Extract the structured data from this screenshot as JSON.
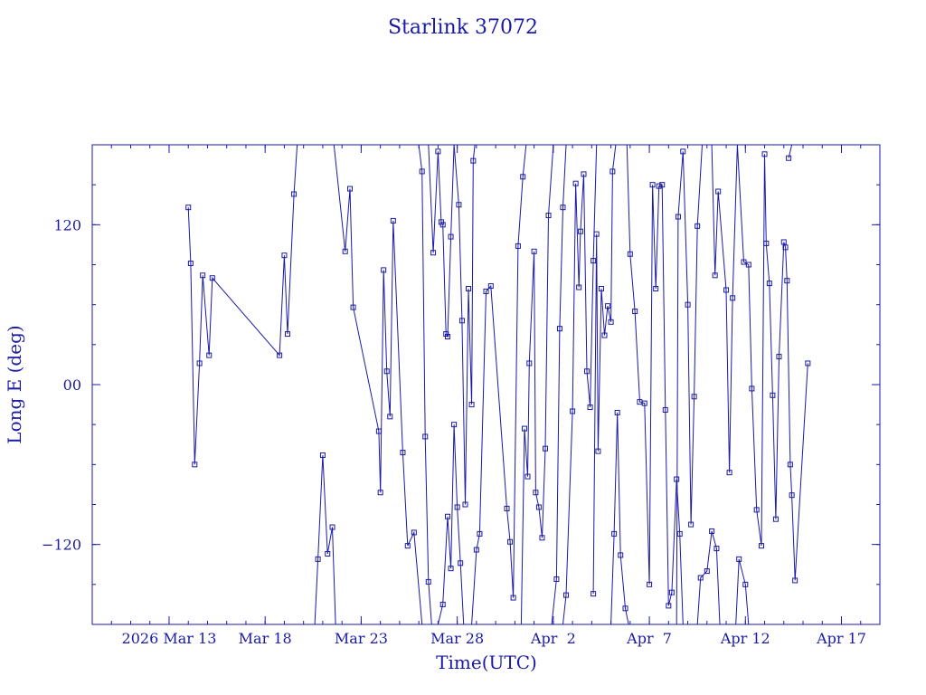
{
  "chart_data": {
    "type": "line",
    "title": "Starlink 37072",
    "xlabel": "Time(UTC)",
    "ylabel": "Long E (deg)",
    "x_unit": "date",
    "xlim": [
      "2026-03-09",
      "2026-04-19"
    ],
    "ylim": [
      -180,
      180
    ],
    "x_ticks": [
      {
        "label": "2026 Mar 13",
        "value": "2026-03-13"
      },
      {
        "label": "Mar 18",
        "value": "2026-03-18"
      },
      {
        "label": "Mar 23",
        "value": "2026-03-23"
      },
      {
        "label": "Mar 28",
        "value": "2026-03-28"
      },
      {
        "label": "Apr  2",
        "value": "2026-04-02"
      },
      {
        "label": "Apr  7",
        "value": "2026-04-07"
      },
      {
        "label": "Apr 12",
        "value": "2026-04-12"
      },
      {
        "label": "Apr 17",
        "value": "2026-04-17"
      }
    ],
    "y_ticks": [
      {
        "label": "120",
        "value": 120
      },
      {
        "label": "00",
        "value": 0
      },
      {
        "label": "−120",
        "value": -120
      }
    ],
    "grid": false,
    "wraps_longitude": true,
    "series": [
      {
        "values": [
          [
            "2026-03-14T00:00",
            133
          ],
          [
            "2026-03-14T03:00",
            91
          ],
          [
            "2026-03-14T08:00",
            -60
          ],
          [
            "2026-03-14T14:00",
            16
          ],
          [
            "2026-03-14T18:00",
            82
          ],
          [
            "2026-03-15T02:00",
            22
          ],
          [
            "2026-03-15T06:00",
            80
          ],
          [
            "2026-03-18T18:00",
            22
          ],
          [
            "2026-03-19T00:00",
            97
          ],
          [
            "2026-03-19T04:00",
            38
          ],
          [
            "2026-03-19T12:00",
            143
          ],
          [
            "2026-03-19T16:00",
            180
          ]
        ]
      },
      {
        "values": [
          [
            "2026-03-20T14:00",
            -180
          ],
          [
            "2026-03-20T18:00",
            -131
          ],
          [
            "2026-03-21T00:00",
            -53
          ],
          [
            "2026-03-21T06:00",
            -127
          ],
          [
            "2026-03-21T12:00",
            -107
          ],
          [
            "2026-03-21T16:00",
            -180
          ]
        ]
      },
      {
        "values": [
          [
            "2026-03-21T14:00",
            180
          ],
          [
            "2026-03-22T04:00",
            100
          ],
          [
            "2026-03-22T10:00",
            147
          ],
          [
            "2026-03-22T14:00",
            58
          ],
          [
            "2026-03-23T22:00",
            -35
          ],
          [
            "2026-03-24T00:00",
            -81
          ],
          [
            "2026-03-24T04:00",
            86
          ],
          [
            "2026-03-24T08:00",
            10
          ],
          [
            "2026-03-24T12:00",
            -24
          ],
          [
            "2026-03-24T16:00",
            123
          ],
          [
            "2026-03-25T04:00",
            -51
          ],
          [
            "2026-03-25T10:00",
            -121
          ],
          [
            "2026-03-25T18:00",
            -111
          ],
          [
            "2026-03-26T04:00",
            -180
          ]
        ]
      },
      {
        "values": [
          [
            "2026-03-26T00:00",
            180
          ],
          [
            "2026-03-26T04:00",
            160
          ],
          [
            "2026-03-26T08:00",
            -39
          ],
          [
            "2026-03-26T12:00",
            -148
          ],
          [
            "2026-03-26T16:00",
            -180
          ]
        ]
      },
      {
        "values": [
          [
            "2026-03-26T12:00",
            180
          ],
          [
            "2026-03-26T18:00",
            99
          ],
          [
            "2026-03-27T00:00",
            175
          ],
          [
            "2026-03-27T04:00",
            122
          ],
          [
            "2026-03-27T06:00",
            120
          ],
          [
            "2026-03-27T10:00",
            38
          ],
          [
            "2026-03-27T12:00",
            36
          ],
          [
            "2026-03-27T16:00",
            111
          ],
          [
            "2026-03-27T20:00",
            180
          ]
        ]
      },
      {
        "values": [
          [
            "2026-03-27T00:00",
            -180
          ],
          [
            "2026-03-27T06:00",
            -165
          ],
          [
            "2026-03-27T12:00",
            -99
          ],
          [
            "2026-03-27T16:00",
            -138
          ],
          [
            "2026-03-27T20:00",
            -30
          ],
          [
            "2026-03-28T00:00",
            -92
          ],
          [
            "2026-03-28T04:00",
            -134
          ],
          [
            "2026-03-28T08:00",
            -180
          ]
        ]
      },
      {
        "values": [
          [
            "2026-03-27T20:00",
            180
          ],
          [
            "2026-03-28T02:00",
            135
          ],
          [
            "2026-03-28T06:00",
            48
          ],
          [
            "2026-03-28T10:00",
            -90
          ],
          [
            "2026-03-28T14:00",
            72
          ],
          [
            "2026-03-28T18:00",
            -15
          ],
          [
            "2026-03-28T20:00",
            168
          ],
          [
            "2026-03-28T22:00",
            180
          ]
        ]
      },
      {
        "values": [
          [
            "2026-03-28T18:00",
            -180
          ],
          [
            "2026-03-29T00:00",
            -124
          ],
          [
            "2026-03-29T04:00",
            -112
          ],
          [
            "2026-03-29T12:00",
            70
          ],
          [
            "2026-03-29T18:00",
            74
          ],
          [
            "2026-03-30T14:00",
            -93
          ],
          [
            "2026-03-30T18:00",
            -118
          ],
          [
            "2026-03-30T22:00",
            -160
          ],
          [
            "2026-03-31T04:00",
            104
          ],
          [
            "2026-03-31T10:00",
            156
          ],
          [
            "2026-03-31T14:00",
            180
          ]
        ]
      },
      {
        "values": [
          [
            "2026-03-31T08:00",
            -180
          ],
          [
            "2026-03-31T12:00",
            -33
          ],
          [
            "2026-03-31T16:00",
            -69
          ],
          [
            "2026-03-31T18:00",
            16
          ],
          [
            "2026-04-01T00:00",
            100
          ],
          [
            "2026-04-01T02:00",
            -81
          ],
          [
            "2026-04-01T06:00",
            -92
          ],
          [
            "2026-04-01T10:00",
            -115
          ],
          [
            "2026-04-01T14:00",
            -48
          ],
          [
            "2026-04-01T18:00",
            127
          ],
          [
            "2026-04-02T00:00",
            180
          ]
        ]
      },
      {
        "values": [
          [
            "2026-04-01T22:00",
            -180
          ],
          [
            "2026-04-02T04:00",
            -146
          ],
          [
            "2026-04-02T08:00",
            42
          ],
          [
            "2026-04-02T12:00",
            133
          ],
          [
            "2026-04-02T16:00",
            180
          ]
        ]
      },
      {
        "values": [
          [
            "2026-04-02T12:00",
            -180
          ],
          [
            "2026-04-02T16:00",
            -158
          ],
          [
            "2026-04-03T00:00",
            -20
          ],
          [
            "2026-04-03T04:00",
            151
          ],
          [
            "2026-04-03T08:00",
            73
          ],
          [
            "2026-04-03T10:00",
            115
          ],
          [
            "2026-04-03T14:00",
            158
          ],
          [
            "2026-04-03T18:00",
            10
          ],
          [
            "2026-04-03T22:00",
            -17
          ],
          [
            "2026-04-04T02:00",
            93
          ],
          [
            "2026-04-04T06:00",
            180
          ]
        ]
      },
      {
        "values": [
          [
            "2026-04-04T02:00",
            -157
          ],
          [
            "2026-04-04T06:00",
            113
          ],
          [
            "2026-04-04T08:00",
            -50
          ],
          [
            "2026-04-04T12:00",
            72
          ],
          [
            "2026-04-04T16:00",
            37
          ],
          [
            "2026-04-04T20:00",
            59
          ],
          [
            "2026-04-05T00:00",
            47
          ],
          [
            "2026-04-05T02:00",
            160
          ],
          [
            "2026-04-05T06:00",
            180
          ]
        ]
      },
      {
        "values": [
          [
            "2026-04-05T00:00",
            -180
          ],
          [
            "2026-04-05T04:00",
            -112
          ],
          [
            "2026-04-05T08:00",
            -21
          ],
          [
            "2026-04-05T12:00",
            -128
          ],
          [
            "2026-04-05T18:00",
            -168
          ],
          [
            "2026-04-05T22:00",
            -180
          ]
        ]
      },
      {
        "values": [
          [
            "2026-04-05T20:00",
            180
          ],
          [
            "2026-04-06T00:00",
            98
          ],
          [
            "2026-04-06T06:00",
            55
          ],
          [
            "2026-04-06T12:00",
            -13
          ],
          [
            "2026-04-06T18:00",
            -14
          ],
          [
            "2026-04-07T00:00",
            -150
          ],
          [
            "2026-04-07T04:00",
            150
          ],
          [
            "2026-04-07T08:00",
            72
          ],
          [
            "2026-04-07T12:00",
            149
          ],
          [
            "2026-04-07T16:00",
            150
          ],
          [
            "2026-04-07T20:00",
            -19
          ],
          [
            "2026-04-08T00:00",
            -166
          ],
          [
            "2026-04-08T04:00",
            -156
          ],
          [
            "2026-04-08T10:00",
            -71
          ],
          [
            "2026-04-08T14:00",
            -112
          ],
          [
            "2026-04-08T18:00",
            -180
          ]
        ]
      },
      {
        "values": [
          [
            "2026-04-08T10:00",
            -180
          ],
          [
            "2026-04-08T12:00",
            126
          ],
          [
            "2026-04-08T18:00",
            175
          ],
          [
            "2026-04-09T00:00",
            60
          ],
          [
            "2026-04-09T04:00",
            -105
          ],
          [
            "2026-04-09T08:00",
            -9
          ],
          [
            "2026-04-09T12:00",
            119
          ],
          [
            "2026-04-09T18:00",
            180
          ]
        ]
      },
      {
        "values": [
          [
            "2026-04-09T12:00",
            -180
          ],
          [
            "2026-04-09T16:00",
            -145
          ],
          [
            "2026-04-10T00:00",
            -140
          ],
          [
            "2026-04-10T06:00",
            -110
          ],
          [
            "2026-04-10T12:00",
            -123
          ],
          [
            "2026-04-10T16:00",
            -180
          ]
        ]
      },
      {
        "values": [
          [
            "2026-04-10T06:00",
            180
          ],
          [
            "2026-04-10T10:00",
            82
          ],
          [
            "2026-04-10T14:00",
            145
          ],
          [
            "2026-04-11T00:00",
            71
          ],
          [
            "2026-04-11T04:00",
            -66
          ],
          [
            "2026-04-11T08:00",
            65
          ],
          [
            "2026-04-11T14:00",
            180
          ]
        ]
      },
      {
        "values": [
          [
            "2026-04-11T12:00",
            -180
          ],
          [
            "2026-04-11T16:00",
            -131
          ],
          [
            "2026-04-12T00:00",
            -150
          ],
          [
            "2026-04-12T04:00",
            -180
          ]
        ]
      },
      {
        "values": [
          [
            "2026-04-11T14:00",
            180
          ],
          [
            "2026-04-11T22:00",
            92
          ],
          [
            "2026-04-12T04:00",
            90
          ],
          [
            "2026-04-12T08:00",
            -3
          ],
          [
            "2026-04-12T14:00",
            -94
          ],
          [
            "2026-04-12T20:00",
            -121
          ],
          [
            "2026-04-13T00:00",
            173
          ],
          [
            "2026-04-13T02:00",
            106
          ],
          [
            "2026-04-13T06:00",
            76
          ],
          [
            "2026-04-13T10:00",
            -8
          ],
          [
            "2026-04-13T14:00",
            -101
          ],
          [
            "2026-04-13T18:00",
            21
          ],
          [
            "2026-04-14T00:00",
            107
          ],
          [
            "2026-04-14T02:00",
            103
          ],
          [
            "2026-04-14T04:00",
            78
          ],
          [
            "2026-04-14T08:00",
            -60
          ],
          [
            "2026-04-14T10:00",
            -83
          ],
          [
            "2026-04-14T14:00",
            -147
          ],
          [
            "2026-04-15T06:00",
            16
          ]
        ]
      },
      {
        "values": [
          [
            "2026-04-14T06:00",
            170
          ],
          [
            "2026-04-14T10:00",
            180
          ]
        ]
      }
    ]
  }
}
